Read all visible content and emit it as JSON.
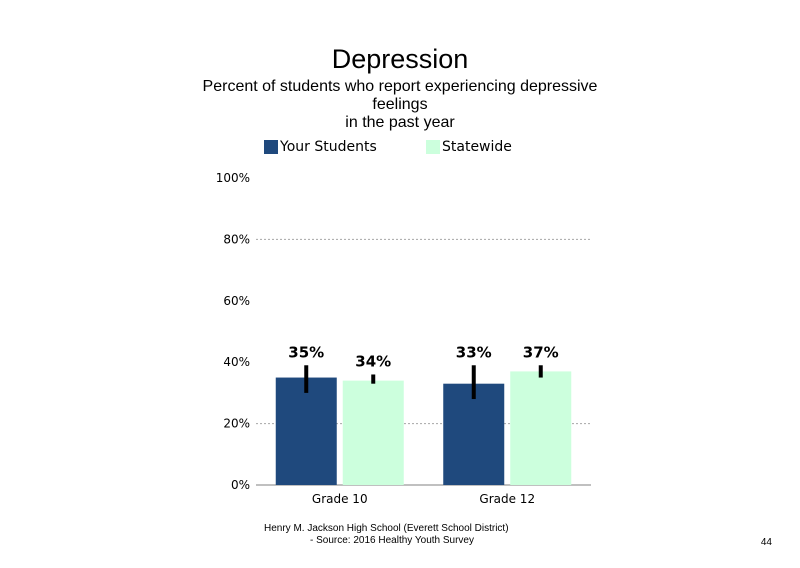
{
  "chart_data": {
    "type": "bar",
    "title": "Depression",
    "subtitle": [
      "Percent of students who report experiencing depressive",
      "feelings",
      "in the past year"
    ],
    "categories": [
      "Grade 10",
      "Grade 12"
    ],
    "series": [
      {
        "name": "Your Students",
        "color": "#1f497d",
        "values": [
          35,
          33
        ],
        "labels": [
          "35%",
          "33%"
        ],
        "error_low": [
          30,
          28
        ],
        "error_high": [
          39,
          39
        ]
      },
      {
        "name": "Statewide",
        "color": "#ccffdd",
        "values": [
          34,
          37
        ],
        "labels": [
          "34%",
          "37%"
        ],
        "error_low": [
          33,
          35
        ],
        "error_high": [
          36,
          39
        ]
      }
    ],
    "ylim": [
      0,
      100
    ],
    "yticks": [
      0,
      20,
      40,
      60,
      80,
      100
    ],
    "ytick_labels": [
      "0%",
      "20%",
      "40%",
      "60%",
      "80%",
      "100%"
    ],
    "gridlines": [
      20,
      80
    ],
    "legend": "top"
  },
  "footer": {
    "line1": "Henry M. Jackson High School (Everett School District)",
    "line2": "- Source: 2016 Healthy Youth Survey"
  },
  "page_number": "44"
}
